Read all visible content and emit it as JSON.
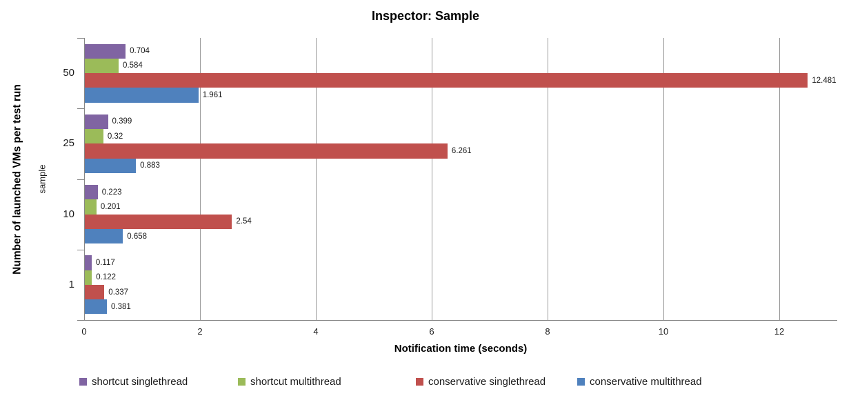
{
  "chart_data": {
    "type": "bar",
    "orientation": "horizontal",
    "title": "Inspector: Sample",
    "xlabel": "Notification time (seconds)",
    "ylabel": "Number of launched VMs per test run",
    "ylabel_secondary": "sample",
    "categories": [
      "50",
      "25",
      "10",
      "1"
    ],
    "series": [
      {
        "name": "shortcut singlethread",
        "color": "#8064A2",
        "values": [
          0.704,
          0.399,
          0.223,
          0.117
        ]
      },
      {
        "name": "shortcut multithread",
        "color": "#9BBB59",
        "values": [
          0.584,
          0.32,
          0.201,
          0.122
        ]
      },
      {
        "name": "conservative singlethread",
        "color": "#C0504D",
        "values": [
          12.481,
          6.261,
          2.54,
          0.337
        ]
      },
      {
        "name": "conservative multithread",
        "color": "#4F81BD",
        "values": [
          1.961,
          0.883,
          0.658,
          0.381
        ]
      }
    ],
    "xlim": [
      0,
      13
    ],
    "xticks": [
      0,
      2,
      4,
      6,
      8,
      10,
      12
    ],
    "grid": true,
    "legend_position": "bottom",
    "axis_color": "#868686",
    "gridline_color": "#9b9b9b"
  }
}
